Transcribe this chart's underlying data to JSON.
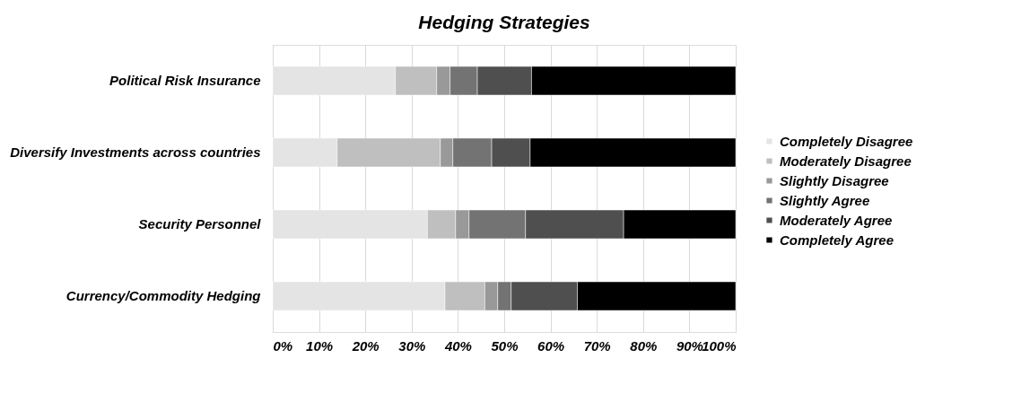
{
  "chart_data": {
    "type": "bar",
    "orientation": "horizontal",
    "stacked": true,
    "title": "Hedging Strategies",
    "categories": [
      "Political Risk Insurance",
      "Diversify Investments across countries",
      "Security Personnel",
      "Currency/Commodity Hedging"
    ],
    "series": [
      {
        "name": "Completely Disagree",
        "color": "#e4e4e4",
        "values": [
          26.5,
          13.9,
          33.4,
          37.2
        ]
      },
      {
        "name": "Moderately Disagree",
        "color": "#bfbfbf",
        "values": [
          8.9,
          22.3,
          6.1,
          8.6
        ]
      },
      {
        "name": "Slightly Disagree",
        "color": "#999999",
        "values": [
          2.9,
          2.7,
          2.9,
          2.8
        ]
      },
      {
        "name": "Slightly Agree",
        "color": "#737373",
        "values": [
          5.9,
          8.4,
          12.2,
          2.9
        ]
      },
      {
        "name": "Moderately Agree",
        "color": "#4f4f4f",
        "values": [
          11.7,
          8.3,
          21.2,
          14.3
        ]
      },
      {
        "name": "Completely Agree",
        "color": "#000000",
        "values": [
          44.1,
          44.4,
          24.2,
          34.2
        ]
      }
    ],
    "xlim": [
      0,
      100
    ],
    "xticks": [
      {
        "value": 0,
        "label": "0%"
      },
      {
        "value": 10,
        "label": "10%"
      },
      {
        "value": 20,
        "label": "20%"
      },
      {
        "value": 30,
        "label": "30%"
      },
      {
        "value": 40,
        "label": "40%"
      },
      {
        "value": 50,
        "label": "50%"
      },
      {
        "value": 60,
        "label": "60%"
      },
      {
        "value": 70,
        "label": "70%"
      },
      {
        "value": 80,
        "label": "80%"
      },
      {
        "value": 90,
        "label": "90%"
      },
      {
        "value": 100,
        "label": "100%"
      }
    ],
    "grid": "x",
    "legend": "right"
  }
}
